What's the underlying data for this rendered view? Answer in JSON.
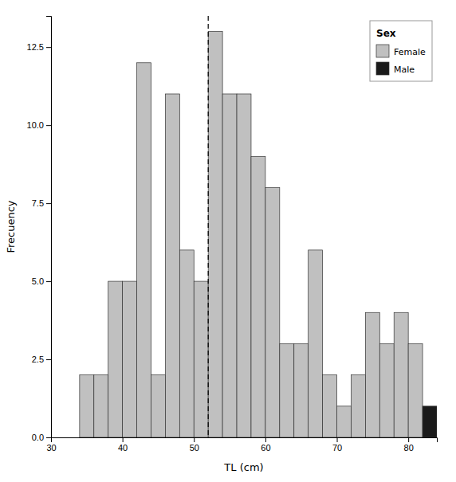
{
  "chart_data": {
    "type": "histogram",
    "xlabel": "TL (cm)",
    "ylabel": "Frecuency",
    "xlim": [
      30,
      84
    ],
    "ylim": [
      0,
      13.5
    ],
    "xticks": [
      30,
      40,
      50,
      60,
      70,
      80
    ],
    "yticks": [
      {
        "value": 0.0,
        "label": "0.0"
      },
      2.5,
      {
        "value": 5.0,
        "label": "5.0"
      },
      7.5,
      {
        "value": 10.0,
        "label": "10.0"
      },
      12.5
    ],
    "series": [
      {
        "name": "Female",
        "color": "#c0c0c0",
        "bins": [
          34,
          36,
          38,
          40,
          42,
          44,
          46,
          48,
          50,
          52,
          54,
          56,
          58,
          60,
          62,
          64,
          66,
          68,
          70,
          72,
          74,
          76,
          78,
          80,
          82
        ],
        "values": [
          2,
          2,
          5,
          5,
          12,
          2,
          11,
          6,
          5,
          13,
          11,
          11,
          9,
          8,
          3,
          3,
          6,
          2,
          1,
          2,
          4,
          3,
          4,
          3
        ]
      },
      {
        "name": "Male",
        "color": "#1a1a1a",
        "bins": [
          82,
          84
        ],
        "values": [
          1
        ]
      }
    ],
    "annotations": [
      {
        "type": "vline",
        "x": 52.0,
        "line_style": "dashed"
      }
    ],
    "legend": "upper right",
    "legend_title": "Sex"
  }
}
